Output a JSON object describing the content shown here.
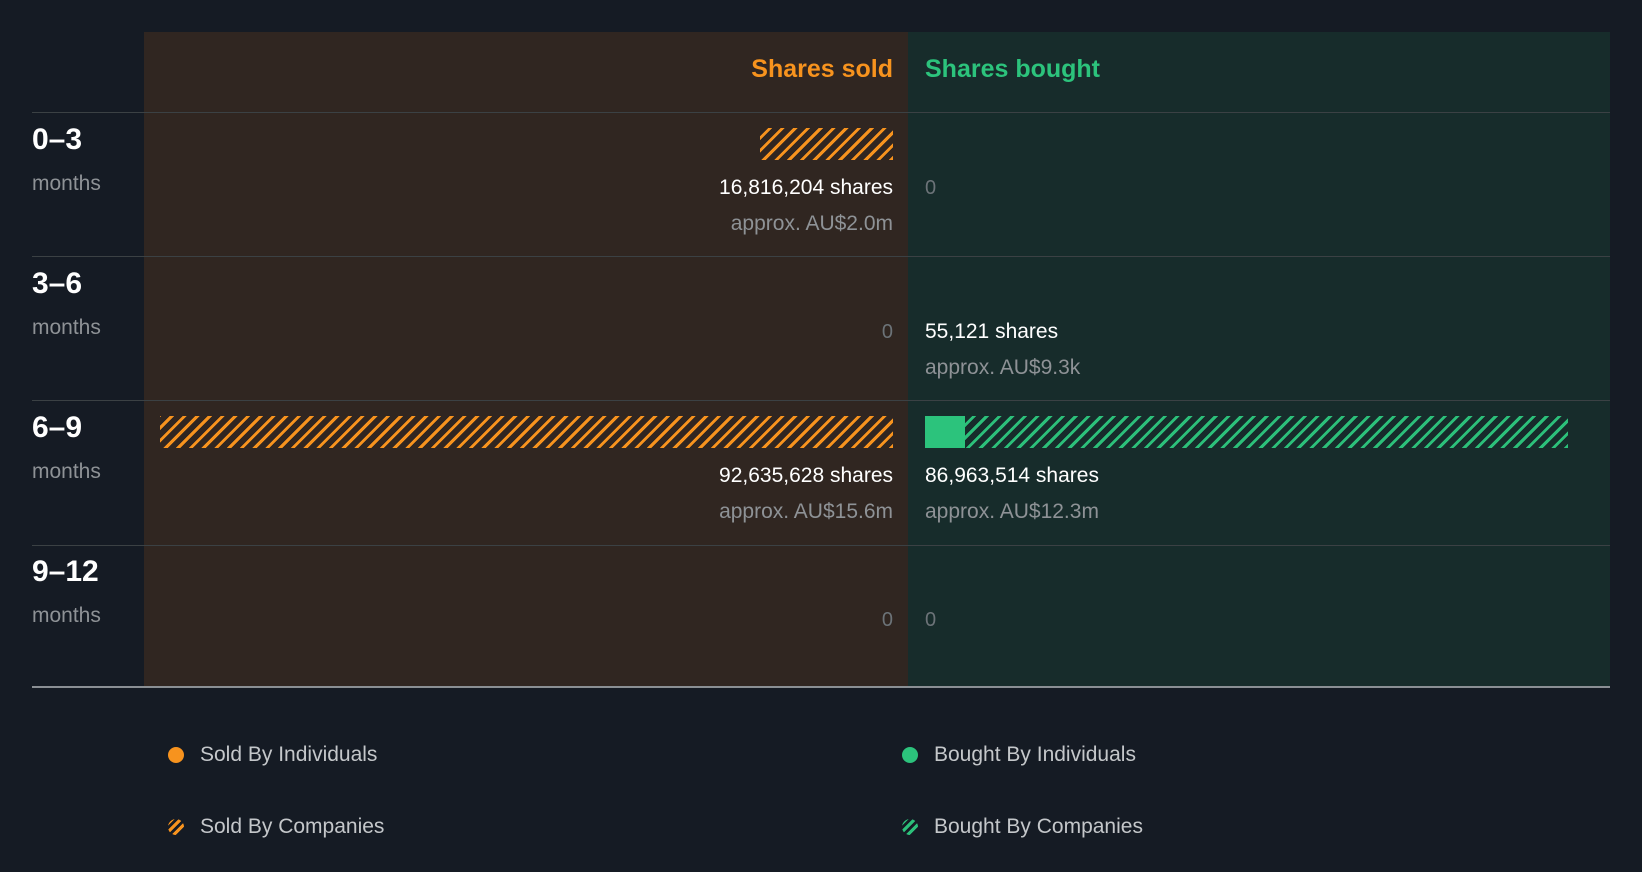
{
  "chart_data": {
    "type": "bar",
    "title": "",
    "columns": {
      "sold": {
        "label": "Shares sold",
        "color": "#f7931e"
      },
      "bought": {
        "label": "Shares bought",
        "color": "#2cc37c"
      }
    },
    "categories": [
      {
        "title": "0–3",
        "unit": "months"
      },
      {
        "title": "3–6",
        "unit": "months"
      },
      {
        "title": "6–9",
        "unit": "months"
      },
      {
        "title": "9–12",
        "unit": "months"
      }
    ],
    "series": [
      {
        "name": "Sold By Individuals",
        "side": "sold",
        "values": [
          0,
          0,
          0,
          0
        ]
      },
      {
        "name": "Sold By Companies",
        "side": "sold",
        "values": [
          16816204,
          0,
          92635628,
          0
        ]
      },
      {
        "name": "Bought By Individuals",
        "side": "bought",
        "values": [
          0,
          55121,
          5400000,
          0
        ]
      },
      {
        "name": "Bought By Companies",
        "side": "bought",
        "values": [
          0,
          0,
          81563514,
          0
        ]
      }
    ],
    "sold": {
      "shares": [
        16816204,
        0,
        92635628,
        0
      ],
      "shares_text": [
        "16,816,204 shares",
        "0",
        "92,635,628 shares",
        "0"
      ],
      "approx_text": [
        "approx. AU$2.0m",
        "",
        "approx. AU$15.6m",
        ""
      ]
    },
    "bought": {
      "shares": [
        0,
        55121,
        86963514,
        0
      ],
      "shares_text": [
        "0",
        "55,121 shares",
        "86,963,514 shares",
        "0"
      ],
      "approx_text": [
        "",
        "approx. AU$9.3k",
        "approx. AU$12.3m",
        ""
      ]
    },
    "max_value": 92635628,
    "legend": [
      {
        "name": "Sold By Individuals",
        "style": "solid",
        "color": "#f7931e"
      },
      {
        "name": "Bought By Individuals",
        "style": "solid",
        "color": "#2cc37c"
      },
      {
        "name": "Sold By Companies",
        "style": "hatched",
        "color": "#f7931e"
      },
      {
        "name": "Bought By Companies",
        "style": "hatched",
        "color": "#2cc37c"
      }
    ]
  }
}
